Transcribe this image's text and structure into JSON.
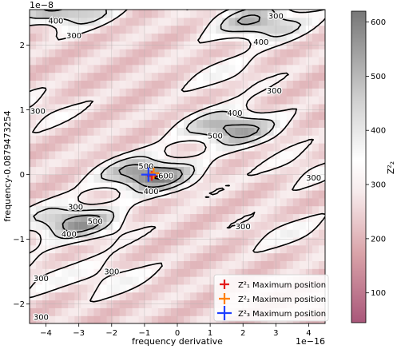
{
  "chart_data": {
    "type": "heatmap",
    "title": "",
    "xlabel": "frequency derivative",
    "ylabel": "frequency-0.0879473254",
    "x_scale_label": "1e−16",
    "y_scale_label": "1e−8",
    "xlim": [
      -4.5,
      4.5
    ],
    "ylim": [
      -2.3,
      2.55
    ],
    "x_ticks": [
      -4,
      -3,
      -2,
      -1,
      0,
      1,
      2,
      3,
      4
    ],
    "x_tick_labels": [
      "−4",
      "−3",
      "−2",
      "−1",
      "0",
      "1",
      "2",
      "3",
      "4"
    ],
    "y_ticks": [
      -2,
      -1,
      0,
      1,
      2
    ],
    "y_tick_labels": [
      "−2",
      "−1",
      "0",
      "1",
      "2"
    ],
    "colorbar": {
      "label": "Z²₂",
      "range": [
        45,
        620
      ],
      "ticks": [
        100,
        200,
        300,
        400,
        500,
        600
      ],
      "tick_labels": [
        "100",
        "200",
        "300",
        "400",
        "500",
        "600"
      ]
    },
    "contour_levels": [
      300,
      400,
      500,
      600
    ],
    "contour_labels": [
      {
        "x": -3.7,
        "y": 2.38,
        "text": "400"
      },
      {
        "x": -3.15,
        "y": 2.15,
        "text": "300"
      },
      {
        "x": 2.55,
        "y": 2.05,
        "text": "400"
      },
      {
        "x": 3.0,
        "y": 2.45,
        "text": "300"
      },
      {
        "x": 2.95,
        "y": 1.3,
        "text": "300"
      },
      {
        "x": -4.25,
        "y": 0.98,
        "text": "300"
      },
      {
        "x": 1.75,
        "y": 0.95,
        "text": "400"
      },
      {
        "x": 1.15,
        "y": 0.6,
        "text": "500"
      },
      {
        "x": -0.95,
        "y": 0.13,
        "text": "500"
      },
      {
        "x": -0.35,
        "y": -0.02,
        "text": "600"
      },
      {
        "x": -0.8,
        "y": -0.26,
        "text": "400"
      },
      {
        "x": 4.15,
        "y": -0.05,
        "text": "300"
      },
      {
        "x": -3.1,
        "y": -0.5,
        "text": "300"
      },
      {
        "x": -2.5,
        "y": -0.72,
        "text": "500"
      },
      {
        "x": -3.3,
        "y": -0.92,
        "text": "400"
      },
      {
        "x": 2.0,
        "y": -0.8,
        "text": "300"
      },
      {
        "x": -4.15,
        "y": -1.6,
        "text": "300"
      },
      {
        "x": -2.0,
        "y": -1.5,
        "text": "300"
      },
      {
        "x": -4.15,
        "y": -2.2,
        "text": "300"
      }
    ],
    "peaks": [
      {
        "x": -0.85,
        "y": 0.0,
        "z": 620
      },
      {
        "x": -3.1,
        "y": -0.73,
        "z": 560
      },
      {
        "x": 1.65,
        "y": 0.72,
        "z": 560
      },
      {
        "x": 2.5,
        "y": 2.35,
        "z": 520
      },
      {
        "x": -3.4,
        "y": 2.55,
        "z": 520
      },
      {
        "x": -2.0,
        "y": -1.6,
        "z": 340
      },
      {
        "x": 1.5,
        "y": 1.55,
        "z": 330
      },
      {
        "x": 3.4,
        "y": -0.9,
        "z": 330
      },
      {
        "x": 4.0,
        "y": 0.1,
        "z": 320
      },
      {
        "x": -4.3,
        "y": 1.0,
        "z": 320
      },
      {
        "x": -4.4,
        "y": -1.55,
        "z": 320
      }
    ],
    "markers": [
      {
        "name": "Z²₁ Maximum position",
        "x": -0.78,
        "y": -0.02,
        "color": "#e41a1c",
        "size": 6
      },
      {
        "name": "Z²₂ Maximum position",
        "x": -0.72,
        "y": 0.02,
        "color": "#ff7f00",
        "size": 7
      },
      {
        "name": "Z²₃ Maximum position",
        "x": -0.88,
        "y": 0.0,
        "color": "#1f3fff",
        "size": 9
      }
    ],
    "legend_position": "lower-right",
    "grid": true
  }
}
